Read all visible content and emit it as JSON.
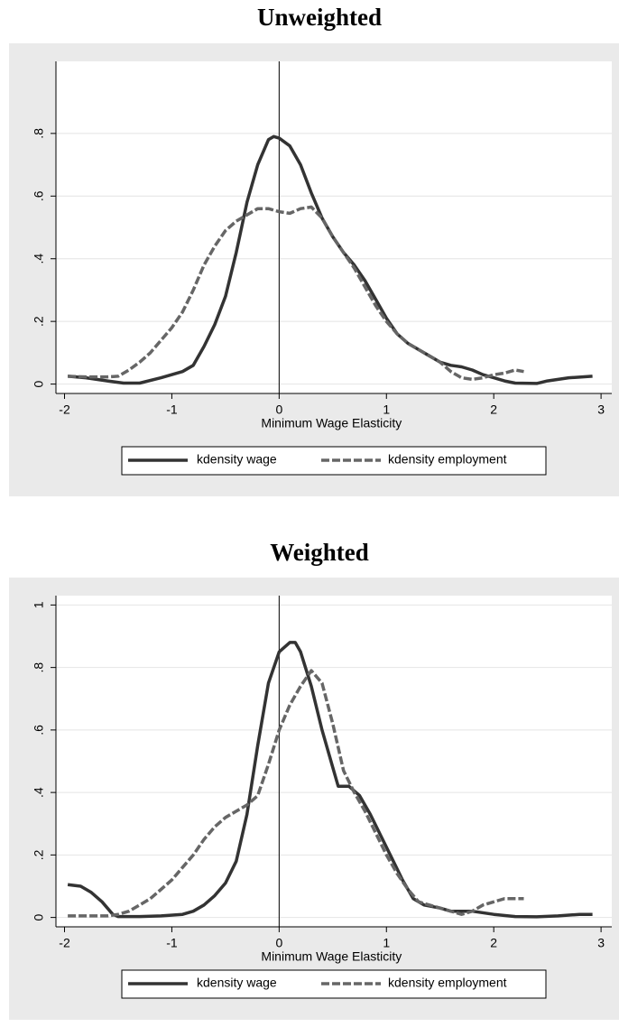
{
  "chart_data": [
    {
      "type": "line",
      "title": "Unweighted",
      "x_label": "Minimum Wage Elasticity",
      "xlim": [
        -2.08,
        3.1
      ],
      "xticks": [
        -2,
        -1,
        0,
        1,
        2,
        3
      ],
      "ylim": [
        -0.03,
        1.03
      ],
      "yticks": [
        0,
        {
          "value": 0.2,
          "label": ".2"
        },
        {
          "value": 0.4,
          "label": ".4"
        },
        {
          "value": 0.6,
          "label": ".6"
        },
        {
          "value": 0.8,
          "label": ".8"
        }
      ],
      "grid": true,
      "xline": 0,
      "legend": "bottom",
      "series": [
        {
          "name": "kdensity wage",
          "color": "#333333",
          "dashed": false,
          "x": [
            -1.97,
            -1.8,
            -1.6,
            -1.45,
            -1.3,
            -1.1,
            -0.9,
            -0.8,
            -0.7,
            -0.6,
            -0.5,
            -0.4,
            -0.3,
            -0.2,
            -0.1,
            -0.05,
            0,
            0.1,
            0.2,
            0.3,
            0.4,
            0.5,
            0.6,
            0.7,
            0.8,
            0.9,
            1.0,
            1.1,
            1.2,
            1.3,
            1.4,
            1.5,
            1.6,
            1.7,
            1.8,
            1.9,
            2.0,
            2.1,
            2.2,
            2.4,
            2.5,
            2.6,
            2.7,
            2.8,
            2.92
          ],
          "values": [
            0.025,
            0.02,
            0.01,
            0.003,
            0.003,
            0.02,
            0.04,
            0.06,
            0.12,
            0.19,
            0.28,
            0.42,
            0.58,
            0.7,
            0.78,
            0.79,
            0.785,
            0.76,
            0.7,
            0.61,
            0.53,
            0.47,
            0.42,
            0.38,
            0.33,
            0.27,
            0.21,
            0.16,
            0.13,
            0.11,
            0.09,
            0.07,
            0.06,
            0.055,
            0.045,
            0.03,
            0.02,
            0.01,
            0.003,
            0.002,
            0.01,
            0.015,
            0.02,
            0.022,
            0.025
          ]
        },
        {
          "name": "kdensity employment",
          "color": "#666666",
          "dashed": true,
          "x": [
            -1.97,
            -1.8,
            -1.6,
            -1.5,
            -1.4,
            -1.3,
            -1.2,
            -1.1,
            -1.0,
            -0.9,
            -0.8,
            -0.7,
            -0.6,
            -0.5,
            -0.4,
            -0.3,
            -0.2,
            -0.1,
            0,
            0.1,
            0.2,
            0.3,
            0.4,
            0.5,
            0.6,
            0.7,
            0.8,
            0.9,
            1.0,
            1.1,
            1.2,
            1.3,
            1.4,
            1.5,
            1.6,
            1.7,
            1.8,
            1.9,
            2.0,
            2.1,
            2.2,
            2.28
          ],
          "values": [
            0.025,
            0.023,
            0.023,
            0.025,
            0.045,
            0.07,
            0.1,
            0.14,
            0.18,
            0.23,
            0.3,
            0.38,
            0.44,
            0.49,
            0.52,
            0.54,
            0.56,
            0.56,
            0.55,
            0.545,
            0.56,
            0.565,
            0.53,
            0.47,
            0.42,
            0.37,
            0.31,
            0.25,
            0.2,
            0.16,
            0.13,
            0.11,
            0.09,
            0.07,
            0.04,
            0.02,
            0.015,
            0.02,
            0.03,
            0.035,
            0.045,
            0.04
          ]
        }
      ]
    },
    {
      "type": "line",
      "title": "Weighted",
      "x_label": "Minimum Wage Elasticity",
      "xlim": [
        -2.08,
        3.1
      ],
      "xticks": [
        -2,
        -1,
        0,
        1,
        2,
        3
      ],
      "ylim": [
        -0.03,
        1.03
      ],
      "yticks": [
        0,
        {
          "value": 0.2,
          "label": ".2"
        },
        {
          "value": 0.4,
          "label": ".4"
        },
        {
          "value": 0.6,
          "label": ".6"
        },
        {
          "value": 0.8,
          "label": ".8"
        },
        1
      ],
      "grid": true,
      "xline": 0,
      "legend": "bottom",
      "series": [
        {
          "name": "kdensity wage",
          "color": "#333333",
          "dashed": false,
          "x": [
            -1.97,
            -1.85,
            -1.75,
            -1.65,
            -1.55,
            -1.5,
            -1.3,
            -1.1,
            -0.9,
            -0.8,
            -0.7,
            -0.6,
            -0.5,
            -0.4,
            -0.3,
            -0.2,
            -0.1,
            0,
            0.1,
            0.15,
            0.2,
            0.3,
            0.4,
            0.5,
            0.55,
            0.65,
            0.75,
            0.85,
            0.95,
            1.05,
            1.15,
            1.25,
            1.35,
            1.5,
            1.6,
            1.8,
            2.0,
            2.2,
            2.4,
            2.6,
            2.8,
            2.92
          ],
          "values": [
            0.105,
            0.1,
            0.08,
            0.05,
            0.01,
            0.003,
            0.003,
            0.005,
            0.01,
            0.02,
            0.04,
            0.07,
            0.11,
            0.18,
            0.33,
            0.55,
            0.75,
            0.85,
            0.88,
            0.88,
            0.85,
            0.74,
            0.6,
            0.48,
            0.42,
            0.42,
            0.39,
            0.33,
            0.26,
            0.19,
            0.12,
            0.06,
            0.04,
            0.03,
            0.02,
            0.02,
            0.01,
            0.003,
            0.002,
            0.005,
            0.01,
            0.01
          ]
        },
        {
          "name": "kdensity employment",
          "color": "#666666",
          "dashed": true,
          "x": [
            -1.97,
            -1.8,
            -1.6,
            -1.5,
            -1.4,
            -1.3,
            -1.2,
            -1.1,
            -1.0,
            -0.9,
            -0.8,
            -0.7,
            -0.6,
            -0.5,
            -0.4,
            -0.3,
            -0.2,
            -0.1,
            0,
            0.1,
            0.2,
            0.3,
            0.4,
            0.5,
            0.6,
            0.7,
            0.8,
            0.9,
            1.0,
            1.1,
            1.2,
            1.3,
            1.4,
            1.5,
            1.6,
            1.7,
            1.8,
            1.9,
            2.0,
            2.1,
            2.28
          ],
          "values": [
            0.005,
            0.005,
            0.005,
            0.01,
            0.02,
            0.04,
            0.06,
            0.09,
            0.12,
            0.16,
            0.2,
            0.25,
            0.29,
            0.32,
            0.34,
            0.36,
            0.39,
            0.49,
            0.6,
            0.68,
            0.74,
            0.79,
            0.75,
            0.62,
            0.47,
            0.4,
            0.34,
            0.27,
            0.2,
            0.14,
            0.09,
            0.05,
            0.04,
            0.03,
            0.02,
            0.01,
            0.02,
            0.04,
            0.05,
            0.06,
            0.06
          ]
        }
      ]
    }
  ]
}
